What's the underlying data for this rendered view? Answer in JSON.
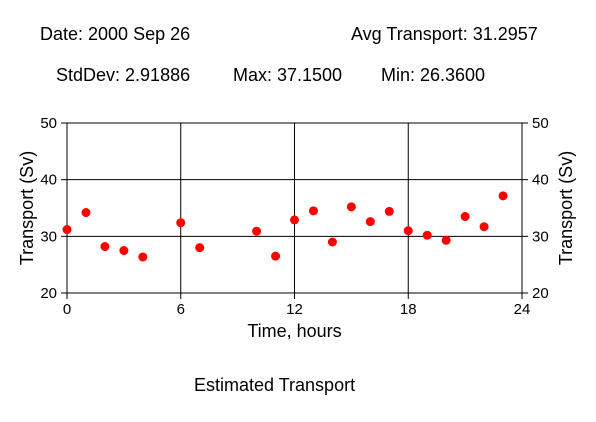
{
  "header": {
    "date_text": "Date: 2000 Sep 26",
    "avg_text": "Avg Transport: 31.2957",
    "stddev_text": "StdDev: 2.91886",
    "max_text": "Max: 37.1500",
    "min_text": "Min: 26.3600"
  },
  "caption": "Estimated Transport",
  "chart_data": {
    "type": "scatter",
    "title": "Estimated Transport",
    "xlabel": "Time, hours",
    "ylabel": "Transport (Sv)",
    "xlim": [
      0,
      24
    ],
    "ylim": [
      20,
      50
    ],
    "xticks": [
      0,
      6,
      12,
      18,
      24
    ],
    "yticks": [
      20,
      30,
      40,
      50
    ],
    "grid": true,
    "marker_color": "#ff0000",
    "series": [
      {
        "x": [
          0,
          1,
          2,
          3,
          4,
          6,
          7,
          10,
          11,
          12,
          13,
          14,
          15,
          16,
          17,
          18,
          19,
          20,
          21,
          22,
          23
        ],
        "y": [
          31.2,
          34.2,
          28.2,
          27.5,
          26.36,
          32.4,
          28.0,
          30.9,
          26.5,
          32.9,
          34.5,
          29.0,
          35.2,
          32.6,
          34.4,
          31.0,
          30.2,
          29.3,
          33.5,
          31.7,
          37.15
        ]
      }
    ]
  }
}
